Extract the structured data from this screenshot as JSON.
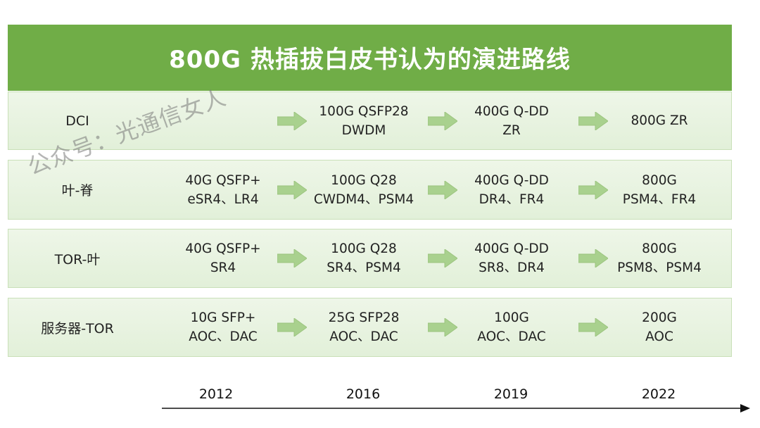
{
  "title": "800G 热插拔白皮书认为的演进路线",
  "watermark": "公众号：光通信女人",
  "rows": [
    {
      "label": "DCI",
      "cells": [
        [],
        [
          "100G QSFP28",
          "DWDM"
        ],
        [
          "400G Q-DD",
          "ZR"
        ],
        [
          "800G ZR"
        ]
      ]
    },
    {
      "label": "叶-脊",
      "cells": [
        [
          "40G QSFP+",
          "eSR4、LR4"
        ],
        [
          "100G Q28",
          "CWDM4、PSM4"
        ],
        [
          "400G Q-DD",
          "DR4、FR4"
        ],
        [
          "800G",
          "PSM4、FR4"
        ]
      ]
    },
    {
      "label": "TOR-叶",
      "cells": [
        [
          "40G QSFP+",
          "SR4"
        ],
        [
          "100G Q28",
          "SR4、PSM4"
        ],
        [
          "400G Q-DD",
          "SR8、DR4"
        ],
        [
          "800G",
          "PSM8、PSM4"
        ]
      ]
    },
    {
      "label": "服务器-TOR",
      "cells": [
        [
          "10G SFP+",
          "AOC、DAC"
        ],
        [
          "25G SFP28",
          "AOC、DAC"
        ],
        [
          "100G",
          "AOC、DAC"
        ],
        [
          "200G",
          "AOC"
        ]
      ]
    }
  ],
  "years": [
    "2012",
    "2016",
    "2019",
    "2022"
  ],
  "colors": {
    "header": "#70ad47",
    "arrow": "#a9d18e",
    "row_bg": "#e2f0d9"
  },
  "icons": {
    "transition": "right-arrow-icon",
    "timeline": "timeline-arrow-icon"
  }
}
